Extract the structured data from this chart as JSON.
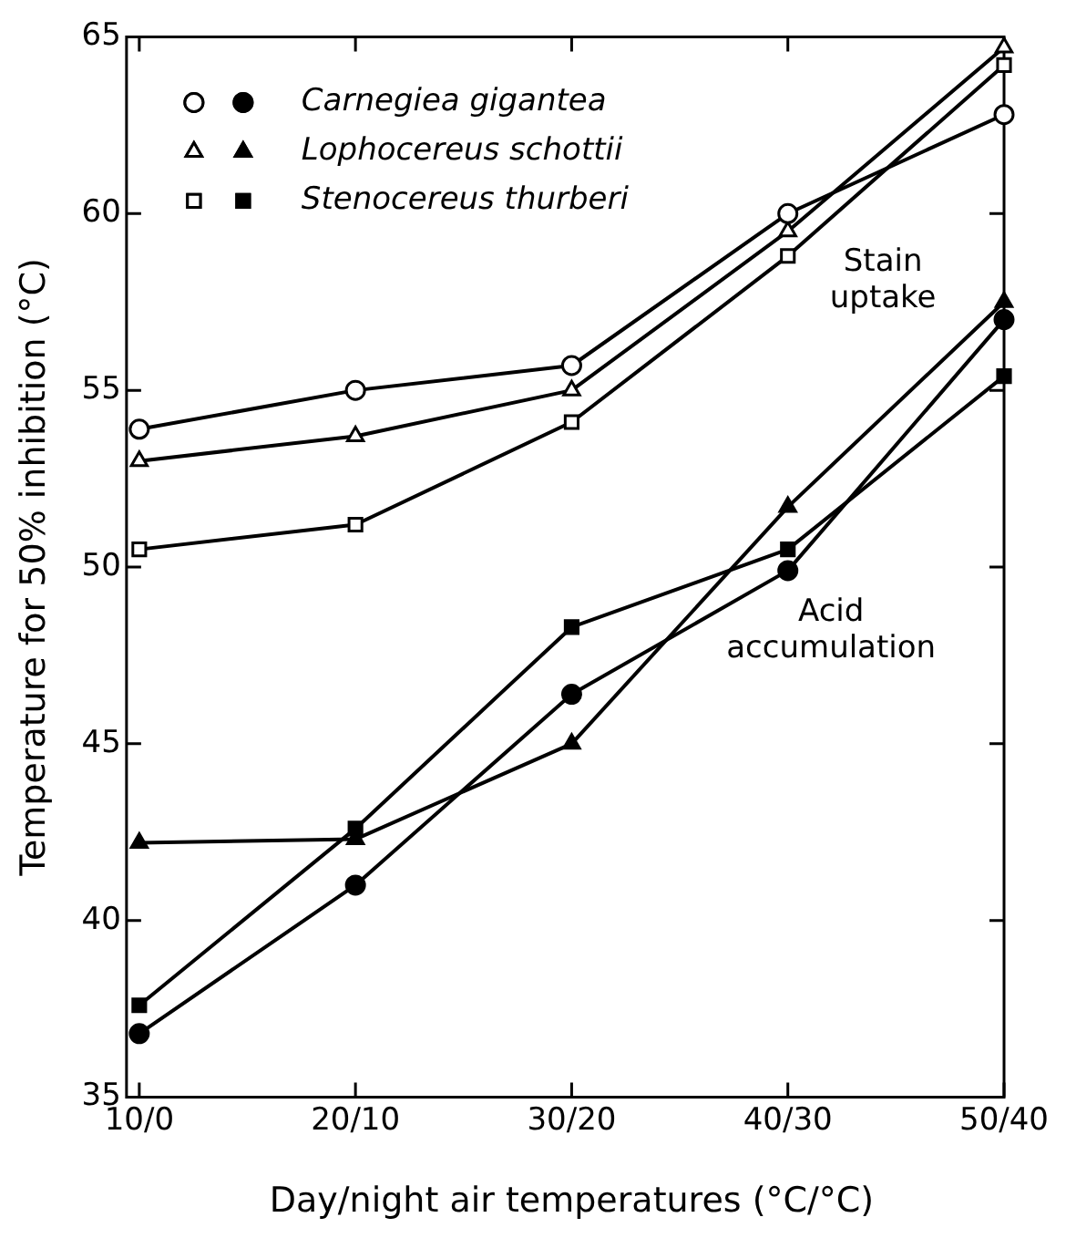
{
  "chart_data": {
    "type": "line",
    "xlabel": "Day/night air temperatures (°C/°C)",
    "ylabel": "Temperature for 50% inhibition (°C)",
    "categories": [
      "10/0",
      "20/10",
      "30/20",
      "40/30",
      "50/40"
    ],
    "ylim": [
      35,
      65
    ],
    "yticks": [
      35,
      40,
      45,
      50,
      55,
      60,
      65
    ],
    "series": [
      {
        "name": "Carnegiea gigantea",
        "color": "#000000",
        "marker": "circle",
        "values": [
          53.9,
          55.0,
          55.7,
          60.0,
          62.8
        ]
      },
      {
        "color": "#000000",
        "marker": "circle",
        "values": [
          36.8,
          41.0,
          46.4,
          49.9,
          57.0
        ]
      },
      {
        "name": "Lophocereus schottii",
        "color": "#000000",
        "marker": "triangle",
        "values": [
          53.0,
          53.7,
          55.0,
          59.5,
          64.7
        ]
      },
      {
        "color": "#000000",
        "marker": "triangle",
        "values": [
          42.2,
          42.3,
          45.0,
          51.7,
          57.5
        ]
      },
      {
        "name": "Stenocereus thurberi",
        "color": "#000000",
        "marker": "square",
        "values": [
          50.5,
          51.2,
          54.1,
          58.8,
          64.2
        ]
      },
      {
        "color": "#000000",
        "marker": "square",
        "values": [
          37.6,
          42.6,
          48.3,
          50.5,
          55.4
        ]
      }
    ],
    "annotations": [
      "Stain uptake",
      "Acid accumulation"
    ],
    "legend": "top left",
    "line_style": "solid"
  }
}
